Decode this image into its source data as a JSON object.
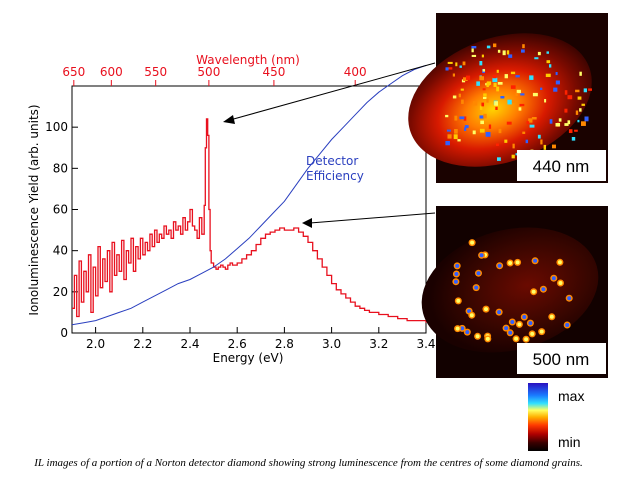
{
  "chart_data": {
    "type": "line",
    "ylabel": "Ionoluminescence Yield (arb. units)",
    "xlabel": "Energy (eV)",
    "top_axis_label": "Wavelength (nm)",
    "xlim": [
      1.9,
      3.4
    ],
    "ylim": [
      0,
      120
    ],
    "x_ticks": [
      "2.0",
      "2.2",
      "2.4",
      "2.6",
      "2.8",
      "3.0",
      "3.2",
      "3.4"
    ],
    "y_ticks": [
      "0",
      "20",
      "40",
      "60",
      "80",
      "100"
    ],
    "top_ticks": [
      {
        "wavelength": 650,
        "label": "650"
      },
      {
        "wavelength": 600,
        "label": "600"
      },
      {
        "wavelength": 550,
        "label": "550"
      },
      {
        "wavelength": 500,
        "label": "500"
      },
      {
        "wavelength": 450,
        "label": "450"
      },
      {
        "wavelength": 400,
        "label": "400"
      }
    ],
    "series": [
      {
        "name": "",
        "color": "#e8101e",
        "x": [
          1.9,
          1.91,
          1.92,
          1.93,
          1.94,
          1.95,
          1.96,
          1.97,
          1.98,
          1.99,
          2.0,
          2.01,
          2.02,
          2.03,
          2.04,
          2.05,
          2.06,
          2.07,
          2.08,
          2.09,
          2.1,
          2.11,
          2.12,
          2.13,
          2.14,
          2.15,
          2.16,
          2.17,
          2.18,
          2.19,
          2.2,
          2.21,
          2.22,
          2.23,
          2.24,
          2.25,
          2.26,
          2.27,
          2.28,
          2.29,
          2.3,
          2.31,
          2.32,
          2.33,
          2.34,
          2.35,
          2.36,
          2.37,
          2.38,
          2.39,
          2.4,
          2.41,
          2.42,
          2.43,
          2.44,
          2.45,
          2.46,
          2.465,
          2.47,
          2.475,
          2.48,
          2.485,
          2.49,
          2.5,
          2.51,
          2.52,
          2.53,
          2.54,
          2.55,
          2.56,
          2.57,
          2.58,
          2.6,
          2.62,
          2.64,
          2.66,
          2.68,
          2.7,
          2.72,
          2.74,
          2.76,
          2.78,
          2.8,
          2.82,
          2.84,
          2.86,
          2.88,
          2.9,
          2.92,
          2.94,
          2.96,
          2.98,
          3.0,
          3.02,
          3.04,
          3.06,
          3.08,
          3.1,
          3.12,
          3.14,
          3.16,
          3.18,
          3.2,
          3.22,
          3.24,
          3.26,
          3.28,
          3.3,
          3.32,
          3.34,
          3.36,
          3.38,
          3.4
        ],
        "y": [
          12,
          28,
          8,
          35,
          15,
          30,
          20,
          38,
          10,
          32,
          18,
          42,
          22,
          36,
          25,
          40,
          20,
          44,
          28,
          38,
          30,
          45,
          26,
          40,
          34,
          46,
          30,
          42,
          36,
          46,
          38,
          44,
          40,
          48,
          42,
          50,
          44,
          48,
          46,
          52,
          48,
          50,
          46,
          54,
          50,
          52,
          48,
          56,
          50,
          54,
          60,
          52,
          50,
          46,
          56,
          48,
          62,
          90,
          104,
          96,
          60,
          40,
          34,
          32,
          31,
          32,
          33,
          32,
          31,
          33,
          34,
          33,
          34,
          36,
          38,
          40,
          43,
          46,
          48,
          49,
          50,
          51,
          50,
          50,
          51,
          49,
          47,
          44,
          40,
          36,
          32,
          28,
          24,
          21,
          19,
          17,
          15,
          13,
          12,
          11,
          10,
          10,
          9,
          9,
          8,
          8,
          7,
          7,
          6,
          6,
          6,
          6,
          5
        ]
      },
      {
        "name": "Detector Efficiency",
        "label_lines": [
          "Detector",
          "Efficiency"
        ],
        "color": "#2a3fbf",
        "x": [
          1.9,
          1.95,
          2.0,
          2.05,
          2.1,
          2.15,
          2.2,
          2.25,
          2.3,
          2.35,
          2.4,
          2.45,
          2.5,
          2.55,
          2.6,
          2.65,
          2.7,
          2.75,
          2.8,
          2.85,
          2.9,
          2.95,
          3.0,
          3.05,
          3.1,
          3.15,
          3.2,
          3.25,
          3.3,
          3.35,
          3.4
        ],
        "y": [
          4,
          5,
          6,
          8,
          10,
          12,
          15,
          18,
          21,
          24,
          26,
          29,
          32,
          36,
          41,
          46,
          52,
          58,
          64,
          72,
          80,
          87,
          94,
          100,
          106,
          112,
          117,
          121,
          125,
          128,
          130
        ]
      }
    ]
  },
  "images": [
    {
      "label": "440 nm"
    },
    {
      "label": "500 nm"
    }
  ],
  "scale": {
    "max_label": "max",
    "min_label": "min"
  },
  "caption": "IL images of a portion of a Norton detector diamond showing strong luminescence from the centres of some diamond grains."
}
